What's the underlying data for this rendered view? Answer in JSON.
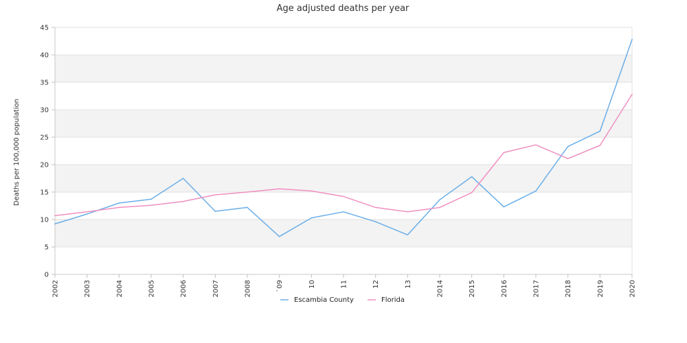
{
  "chart_data": {
    "type": "line",
    "title": "Age adjusted deaths per year",
    "xlabel": "",
    "ylabel": "Deaths per 100,000 population",
    "x": [
      "2002",
      "2003",
      "2004",
      "2005",
      "2006",
      "2007",
      "2008",
      "2009",
      "2010",
      "2011",
      "2012",
      "2013",
      "2014",
      "2015",
      "2016",
      "2017",
      "2018",
      "2019",
      "2020"
    ],
    "xtick_labels": [
      "2002",
      "2003",
      "2004",
      "2005",
      "2006",
      "2007",
      "2008",
      "`09",
      "10",
      "11",
      "12",
      "13",
      "2014",
      "2015",
      "2016",
      "2017",
      "2018",
      "2019",
      "2020"
    ],
    "ylim": [
      0,
      45
    ],
    "yticks": [
      0,
      5,
      10,
      15,
      20,
      25,
      30,
      35,
      40,
      45
    ],
    "grid": "alternating horizontal bands",
    "legend": "bottom-center",
    "series": [
      {
        "name": "Escambia County",
        "color": "#6aaee8",
        "values": [
          9.2,
          11.0,
          13.0,
          13.7,
          17.5,
          11.5,
          12.2,
          6.9,
          10.3,
          11.4,
          9.6,
          7.2,
          13.6,
          17.8,
          12.3,
          15.2,
          23.3,
          26.1,
          42.8
        ]
      },
      {
        "name": "Florida",
        "color": "#f08fc0",
        "values": [
          10.7,
          11.4,
          12.2,
          12.6,
          13.3,
          14.5,
          15.0,
          15.6,
          15.2,
          14.2,
          12.2,
          11.4,
          12.2,
          14.9,
          22.2,
          23.6,
          21.1,
          23.5,
          32.8
        ]
      }
    ]
  }
}
